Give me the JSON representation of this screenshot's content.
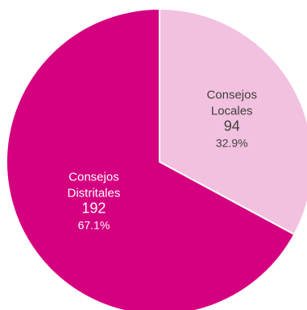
{
  "chart_data": {
    "type": "pie",
    "title": "",
    "slices": [
      {
        "name": "Consejos Locales",
        "name_lines": [
          "Consejos",
          "Locales"
        ],
        "value": 94,
        "percent_label": "32.9%",
        "color": "#F2C1DF",
        "label_color": "#404040"
      },
      {
        "name": "Consejos Distritales",
        "name_lines": [
          "Consejos",
          "Distritales"
        ],
        "value": 192,
        "percent_label": "67.1%",
        "color": "#D5007F",
        "label_color": "#FFFFFF"
      }
    ]
  }
}
